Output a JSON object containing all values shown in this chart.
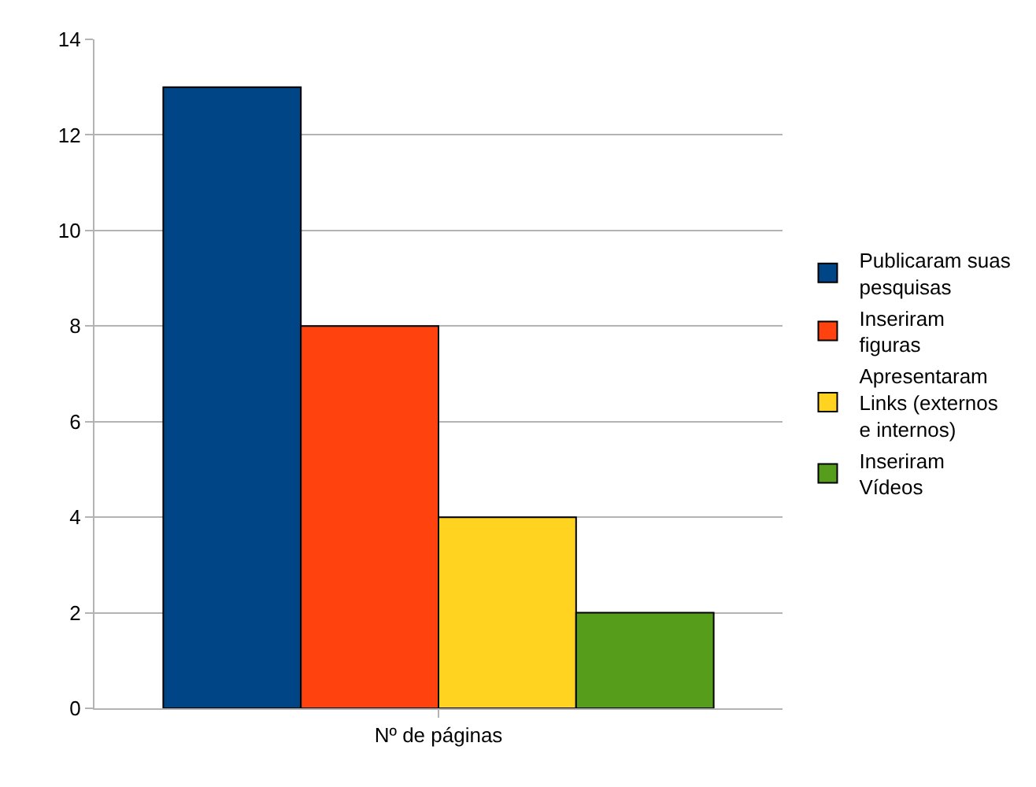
{
  "chart_data": {
    "type": "bar",
    "categories": [
      "Nº de páginas"
    ],
    "series": [
      {
        "name": "Publicaram suas pesquisas",
        "color": "#004586",
        "values": [
          13
        ]
      },
      {
        "name": "Inseriram figuras",
        "color": "#ff420e",
        "values": [
          8
        ]
      },
      {
        "name": "Apresentaram Links (externos e internos)",
        "color": "#ffd320",
        "values": [
          4
        ]
      },
      {
        "name": "Inseriram Vídeos",
        "color": "#579d1c",
        "values": [
          2
        ]
      }
    ],
    "ylim": [
      0,
      14
    ],
    "yticks": [
      0,
      2,
      4,
      6,
      8,
      10,
      12,
      14
    ],
    "grid": "y",
    "legend": "right"
  }
}
